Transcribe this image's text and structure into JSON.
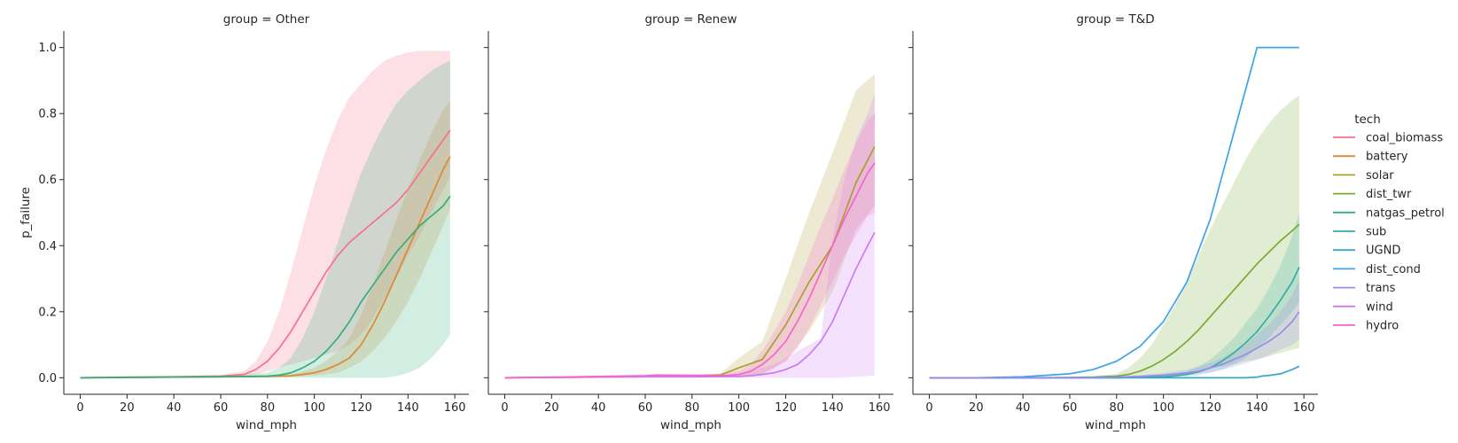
{
  "chart_data": {
    "type": "line",
    "xlabel": "wind_mph",
    "ylabel": "p_failure",
    "xlim": [
      -7,
      166
    ],
    "ylim": [
      -0.05,
      1.05
    ],
    "xticks": [
      0,
      20,
      40,
      60,
      80,
      100,
      120,
      140,
      160
    ],
    "yticks": [
      0.0,
      0.2,
      0.4,
      0.6,
      0.8,
      1.0
    ],
    "ytick_labels": [
      "0.0",
      "0.2",
      "0.4",
      "0.6",
      "0.8",
      "1.0"
    ],
    "xtick_labels": [
      "0",
      "20",
      "40",
      "60",
      "80",
      "100",
      "120",
      "140",
      "160"
    ],
    "grid": false,
    "legend": {
      "title": "tech",
      "placement": "right",
      "entries": [
        {
          "name": "coal_biomass",
          "color": "#f77189"
        },
        {
          "name": "battery",
          "color": "#dc8932"
        },
        {
          "name": "solar",
          "color": "#ae9d31"
        },
        {
          "name": "dist_twr",
          "color": "#77ab31"
        },
        {
          "name": "natgas_petrol",
          "color": "#33b07a"
        },
        {
          "name": "sub",
          "color": "#36ada4"
        },
        {
          "name": "UGND",
          "color": "#38a9c5"
        },
        {
          "name": "dist_cond",
          "color": "#3ba3ec"
        },
        {
          "name": "trans",
          "color": "#9a8aeb"
        },
        {
          "name": "wind",
          "color": "#cc7af4"
        },
        {
          "name": "hydro",
          "color": "#f565cc"
        }
      ]
    },
    "panels": [
      {
        "title": "group = Other",
        "series": [
          {
            "name": "coal_biomass",
            "color": "#f77189",
            "x": [
              0,
              20,
              40,
              60,
              70,
              75,
              80,
              85,
              90,
              95,
              100,
              105,
              110,
              115,
              120,
              125,
              130,
              135,
              140,
              145,
              150,
              155,
              158
            ],
            "y": [
              0.0,
              0.002,
              0.003,
              0.005,
              0.01,
              0.025,
              0.05,
              0.09,
              0.14,
              0.2,
              0.26,
              0.32,
              0.37,
              0.41,
              0.44,
              0.47,
              0.5,
              0.53,
              0.57,
              0.62,
              0.67,
              0.72,
              0.75
            ],
            "lower": [
              0.0,
              0.001,
              0.002,
              0.003,
              0.005,
              0.01,
              0.02,
              0.03,
              0.04,
              0.05,
              0.06,
              0.07,
              0.08,
              0.1,
              0.13,
              0.18,
              0.24,
              0.3,
              0.37,
              0.43,
              0.5,
              0.57,
              0.61
            ],
            "upper": [
              0.0,
              0.003,
              0.005,
              0.008,
              0.02,
              0.05,
              0.11,
              0.2,
              0.32,
              0.45,
              0.58,
              0.69,
              0.78,
              0.85,
              0.89,
              0.93,
              0.96,
              0.975,
              0.985,
              0.99,
              0.99,
              0.99,
              0.99
            ]
          },
          {
            "name": "battery",
            "color": "#dc8932",
            "x": [
              0,
              20,
              40,
              60,
              80,
              90,
              95,
              100,
              105,
              110,
              115,
              120,
              125,
              130,
              135,
              140,
              145,
              150,
              155,
              158
            ],
            "y": [
              0.0,
              0.001,
              0.002,
              0.003,
              0.004,
              0.006,
              0.01,
              0.015,
              0.025,
              0.04,
              0.06,
              0.1,
              0.16,
              0.23,
              0.31,
              0.39,
              0.47,
              0.55,
              0.63,
              0.67
            ],
            "lower": [
              0.0,
              0.0,
              0.001,
              0.001,
              0.002,
              0.003,
              0.004,
              0.006,
              0.01,
              0.015,
              0.03,
              0.05,
              0.08,
              0.12,
              0.17,
              0.23,
              0.3,
              0.38,
              0.46,
              0.51
            ],
            "upper": [
              0.0,
              0.002,
              0.003,
              0.005,
              0.007,
              0.01,
              0.02,
              0.03,
              0.05,
              0.08,
              0.12,
              0.19,
              0.28,
              0.38,
              0.48,
              0.57,
              0.66,
              0.74,
              0.81,
              0.84
            ]
          },
          {
            "name": "natgas_petrol",
            "color": "#33b07a",
            "x": [
              0,
              20,
              40,
              60,
              80,
              85,
              90,
              95,
              100,
              105,
              110,
              115,
              120,
              125,
              130,
              135,
              140,
              145,
              150,
              155,
              158
            ],
            "y": [
              0.0,
              0.001,
              0.002,
              0.003,
              0.005,
              0.008,
              0.015,
              0.03,
              0.05,
              0.08,
              0.12,
              0.17,
              0.23,
              0.28,
              0.33,
              0.38,
              0.42,
              0.46,
              0.49,
              0.52,
              0.55
            ],
            "lower": [
              0.0,
              0.0,
              0.0,
              0.0,
              0.0,
              0.0,
              0.0,
              0.0,
              0.0,
              0.0,
              0.0,
              0.0,
              0.0,
              0.0,
              0.0,
              0.005,
              0.015,
              0.03,
              0.06,
              0.1,
              0.13
            ],
            "upper": [
              0.0,
              0.002,
              0.004,
              0.007,
              0.015,
              0.03,
              0.06,
              0.12,
              0.2,
              0.3,
              0.41,
              0.52,
              0.62,
              0.7,
              0.77,
              0.83,
              0.87,
              0.9,
              0.93,
              0.95,
              0.96
            ]
          }
        ]
      },
      {
        "title": "group = Renew",
        "series": [
          {
            "name": "solar",
            "color": "#ae9d31",
            "x": [
              0,
              20,
              40,
              60,
              80,
              92,
              100,
              110,
              120,
              130,
              140,
              150,
              158
            ],
            "y": [
              0.0,
              0.001,
              0.002,
              0.004,
              0.006,
              0.008,
              0.03,
              0.055,
              0.16,
              0.29,
              0.4,
              0.59,
              0.7
            ],
            "lower": [
              0.0,
              0.0,
              0.001,
              0.002,
              0.003,
              0.004,
              0.005,
              0.01,
              0.05,
              0.14,
              0.26,
              0.45,
              0.52
            ],
            "upper": [
              0.0,
              0.002,
              0.004,
              0.006,
              0.009,
              0.012,
              0.06,
              0.11,
              0.3,
              0.5,
              0.68,
              0.87,
              0.92
            ]
          },
          {
            "name": "wind",
            "color": "#cc7af4",
            "x": [
              0,
              20,
              40,
              60,
              80,
              100,
              105,
              110,
              115,
              120,
              125,
              130,
              135,
              140,
              145,
              150,
              155,
              158
            ],
            "y": [
              0.0,
              0.001,
              0.002,
              0.003,
              0.003,
              0.004,
              0.006,
              0.01,
              0.015,
              0.025,
              0.04,
              0.07,
              0.11,
              0.17,
              0.25,
              0.33,
              0.4,
              0.44
            ],
            "lower": [
              0.0,
              0.0,
              0.0,
              0.0,
              0.0,
              0.0,
              0.0,
              0.0,
              0.0,
              0.0,
              0.0,
              0.0,
              0.0,
              0.0,
              0.001,
              0.003,
              0.005,
              0.007
            ],
            "upper": [
              0.0,
              0.002,
              0.004,
              0.006,
              0.008,
              0.01,
              0.02,
              0.03,
              0.04,
              0.06,
              0.08,
              0.1,
              0.12,
              0.42,
              0.6,
              0.72,
              0.8,
              0.86
            ]
          },
          {
            "name": "hydro",
            "color": "#f565cc",
            "x": [
              0,
              20,
              40,
              60,
              65,
              80,
              90,
              95,
              100,
              105,
              110,
              115,
              120,
              125,
              130,
              135,
              140,
              145,
              150,
              155,
              158
            ],
            "y": [
              0.0,
              0.002,
              0.004,
              0.006,
              0.008,
              0.007,
              0.006,
              0.007,
              0.01,
              0.02,
              0.04,
              0.07,
              0.11,
              0.17,
              0.24,
              0.32,
              0.4,
              0.48,
              0.55,
              0.62,
              0.65
            ],
            "lower": [
              0.0,
              0.001,
              0.002,
              0.003,
              0.004,
              0.003,
              0.002,
              0.002,
              0.003,
              0.006,
              0.012,
              0.03,
              0.05,
              0.09,
              0.15,
              0.22,
              0.29,
              0.37,
              0.43,
              0.49,
              0.5
            ],
            "upper": [
              0.0,
              0.003,
              0.006,
              0.01,
              0.012,
              0.012,
              0.012,
              0.015,
              0.02,
              0.04,
              0.08,
              0.14,
              0.2,
              0.28,
              0.37,
              0.46,
              0.54,
              0.63,
              0.71,
              0.78,
              0.8
            ]
          }
        ]
      },
      {
        "title": "group = T&D",
        "series": [
          {
            "name": "dist_cond",
            "color": "#3ba3ec",
            "x": [
              0,
              20,
              40,
              60,
              70,
              80,
              90,
              100,
              110,
              120,
              130,
              140,
              150,
              158
            ],
            "y": [
              0.0,
              0.0,
              0.003,
              0.012,
              0.025,
              0.05,
              0.095,
              0.17,
              0.29,
              0.48,
              0.74,
              1.0,
              1.0,
              1.0
            ]
          },
          {
            "name": "dist_twr",
            "color": "#77ab31",
            "x": [
              0,
              20,
              40,
              60,
              70,
              80,
              85,
              90,
              95,
              100,
              105,
              110,
              115,
              120,
              125,
              130,
              135,
              140,
              145,
              150,
              155,
              158
            ],
            "y": [
              0.0,
              0.0,
              0.0,
              0.001,
              0.002,
              0.005,
              0.01,
              0.02,
              0.035,
              0.055,
              0.08,
              0.11,
              0.145,
              0.185,
              0.225,
              0.265,
              0.305,
              0.345,
              0.38,
              0.415,
              0.445,
              0.465
            ],
            "lower": [
              0.0,
              0.0,
              0.0,
              0.0,
              0.0,
              0.001,
              0.002,
              0.004,
              0.007,
              0.01,
              0.014,
              0.018,
              0.023,
              0.03,
              0.035,
              0.04,
              0.05,
              0.055,
              0.065,
              0.075,
              0.085,
              0.09
            ],
            "upper": [
              0.0,
              0.0,
              0.001,
              0.003,
              0.005,
              0.012,
              0.03,
              0.06,
              0.1,
              0.16,
              0.22,
              0.29,
              0.37,
              0.45,
              0.52,
              0.59,
              0.66,
              0.72,
              0.77,
              0.81,
              0.84,
              0.855
            ]
          },
          {
            "name": "sub",
            "color": "#36ada4",
            "x": [
              0,
              20,
              40,
              60,
              80,
              100,
              105,
              110,
              115,
              120,
              125,
              130,
              135,
              140,
              145,
              150,
              155,
              158
            ],
            "y": [
              0.0,
              0.0,
              0.0,
              0.0,
              0.0,
              0.003,
              0.006,
              0.01,
              0.018,
              0.03,
              0.05,
              0.075,
              0.105,
              0.14,
              0.185,
              0.235,
              0.29,
              0.335
            ],
            "lower": [
              0.0,
              0.0,
              0.0,
              0.0,
              0.0,
              0.001,
              0.002,
              0.004,
              0.008,
              0.015,
              0.025,
              0.04,
              0.06,
              0.09,
              0.12,
              0.16,
              0.2,
              0.23
            ],
            "upper": [
              0.0,
              0.0,
              0.0,
              0.0,
              0.001,
              0.006,
              0.012,
              0.02,
              0.035,
              0.055,
              0.085,
              0.12,
              0.165,
              0.21,
              0.27,
              0.34,
              0.43,
              0.5
            ]
          },
          {
            "name": "UGND",
            "color": "#38a9c5",
            "x": [
              0,
              20,
              40,
              60,
              80,
              100,
              120,
              135,
              140,
              142,
              145,
              150,
              155,
              158
            ],
            "y": [
              0.0,
              0.0,
              0.0,
              0.0,
              0.0,
              0.0,
              0.0,
              0.0,
              0.002,
              0.005,
              0.007,
              0.012,
              0.025,
              0.035
            ]
          },
          {
            "name": "trans",
            "color": "#9a8aeb",
            "x": [
              0,
              20,
              40,
              60,
              80,
              90,
              100,
              110,
              115,
              120,
              125,
              130,
              135,
              140,
              145,
              150,
              155,
              158
            ],
            "y": [
              0.0,
              0.0,
              0.0,
              0.0,
              0.002,
              0.004,
              0.008,
              0.015,
              0.02,
              0.03,
              0.04,
              0.055,
              0.07,
              0.09,
              0.11,
              0.135,
              0.17,
              0.2
            ],
            "lower": [
              0.0,
              0.0,
              0.0,
              0.0,
              0.001,
              0.002,
              0.004,
              0.008,
              0.012,
              0.017,
              0.024,
              0.033,
              0.043,
              0.055,
              0.068,
              0.085,
              0.1,
              0.115
            ],
            "upper": [
              0.0,
              0.0,
              0.0,
              0.0,
              0.004,
              0.008,
              0.015,
              0.025,
              0.033,
              0.045,
              0.06,
              0.08,
              0.1,
              0.13,
              0.16,
              0.2,
              0.25,
              0.3
            ]
          }
        ]
      }
    ]
  }
}
